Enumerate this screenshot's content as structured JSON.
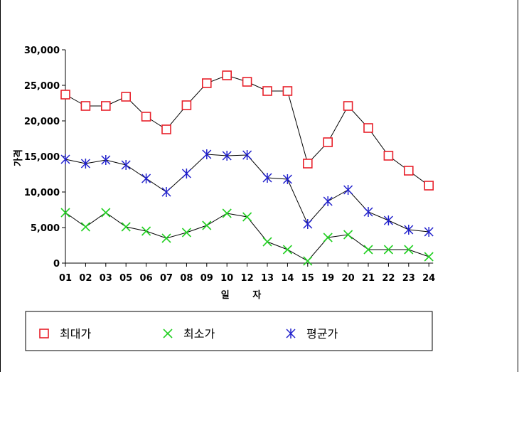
{
  "chart_data": {
    "type": "line",
    "title": "",
    "xlabel": "일 자",
    "ylabel": "가격",
    "categories": [
      "01",
      "02",
      "03",
      "05",
      "06",
      "07",
      "08",
      "09",
      "10",
      "12",
      "13",
      "14",
      "15",
      "19",
      "20",
      "21",
      "22",
      "23",
      "24"
    ],
    "ylim": [
      0,
      30000
    ],
    "yticks": [
      0,
      5000,
      10000,
      15000,
      20000,
      25000,
      30000
    ],
    "ytick_labels": [
      "0",
      "5,000",
      "10,000",
      "15,000",
      "20,000",
      "25,000",
      "30,000"
    ],
    "grid": false,
    "legend_position": "bottom",
    "series": [
      {
        "name": "최대가",
        "marker": "square",
        "color": "#e8202a",
        "values": [
          23700,
          22100,
          22100,
          23400,
          20600,
          18800,
          22200,
          25300,
          26400,
          25500,
          24200,
          24200,
          14000,
          17000,
          22100,
          19000,
          15100,
          13000,
          10900
        ]
      },
      {
        "name": "최소가",
        "marker": "x",
        "color": "#22d022",
        "values": [
          7100,
          5100,
          7100,
          5100,
          4500,
          3500,
          4300,
          5300,
          7000,
          6500,
          3000,
          1900,
          300,
          3600,
          4000,
          1900,
          1900,
          1900,
          900
        ]
      },
      {
        "name": "평균가",
        "marker": "asterisk",
        "color": "#2020cc",
        "values": [
          14600,
          14000,
          14500,
          13800,
          11900,
          10000,
          12600,
          15300,
          15100,
          15200,
          12000,
          11800,
          5500,
          8700,
          10300,
          7200,
          6000,
          4700,
          4400
        ]
      }
    ]
  }
}
